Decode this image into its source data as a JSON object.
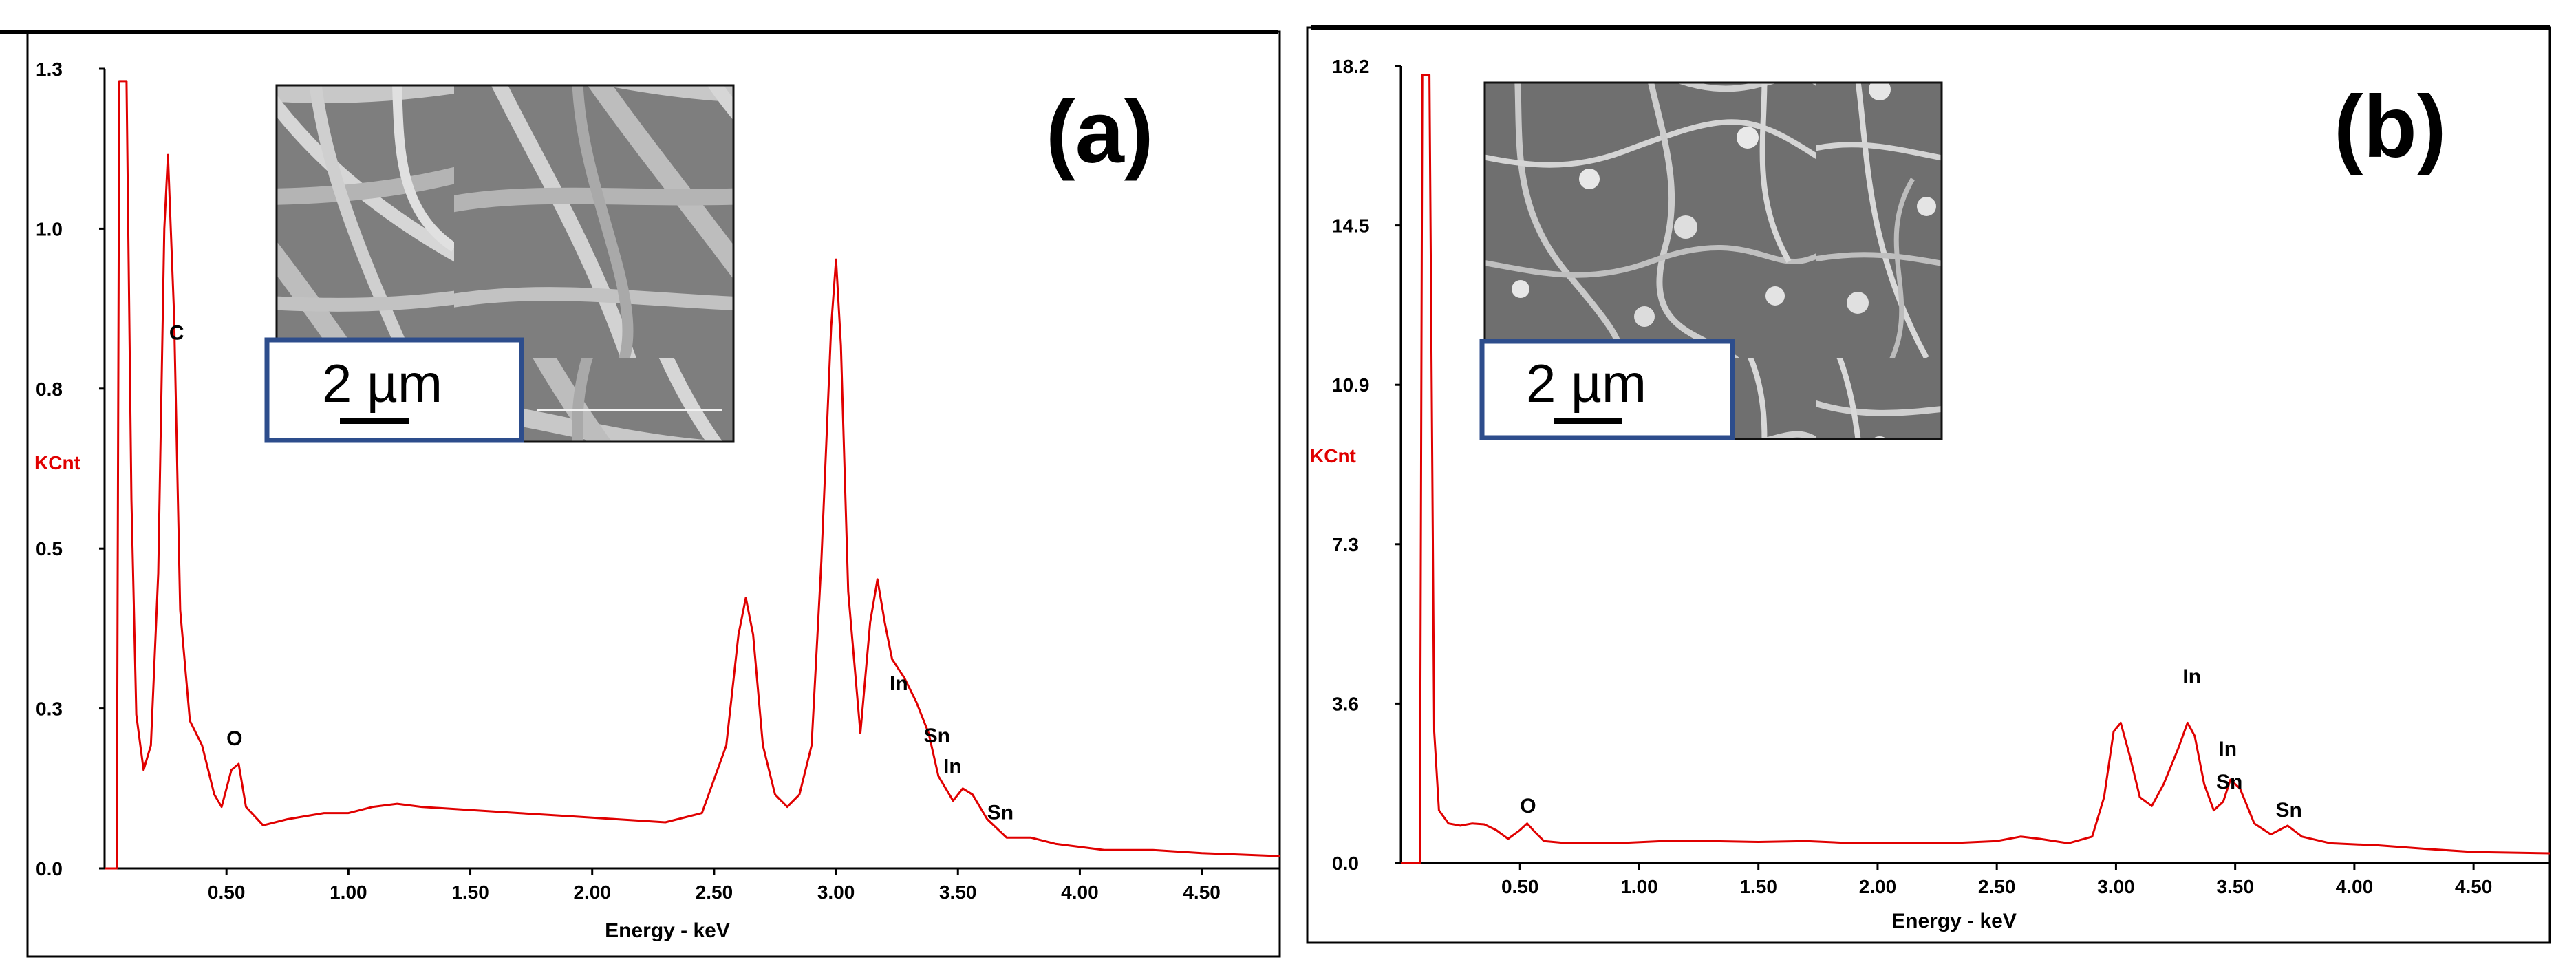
{
  "chart_data": [
    {
      "type": "line",
      "panel_label": "(a)",
      "ylabel": "KCnt",
      "xlabel": "Energy - keV",
      "y_tick_labels": [
        "0.0",
        "0.3",
        "0.5",
        "0.8",
        "1.0",
        "1.3"
      ],
      "x_tick_labels": [
        "0.50",
        "1.00",
        "1.50",
        "2.00",
        "2.50",
        "3.00",
        "3.50",
        "4.00",
        "4.50"
      ],
      "x_ticks": [
        0.5,
        1.0,
        1.5,
        2.0,
        2.5,
        3.0,
        3.5,
        4.0,
        4.5
      ],
      "xlim": [
        0.0,
        4.82
      ],
      "ylim": [
        0.0,
        1.3
      ],
      "series": [
        {
          "name": "EDS spectrum (a)",
          "color": "#e00000",
          "points": [
            [
              0.0,
              0.0
            ],
            [
              0.03,
              0.0
            ],
            [
              0.05,
              0.0
            ],
            [
              0.06,
              1.28
            ],
            [
              0.09,
              1.28
            ],
            [
              0.11,
              0.6
            ],
            [
              0.13,
              0.25
            ],
            [
              0.16,
              0.16
            ],
            [
              0.19,
              0.2
            ],
            [
              0.22,
              0.48
            ],
            [
              0.245,
              1.04
            ],
            [
              0.26,
              1.16
            ],
            [
              0.285,
              0.9
            ],
            [
              0.31,
              0.42
            ],
            [
              0.35,
              0.24
            ],
            [
              0.4,
              0.2
            ],
            [
              0.45,
              0.12
            ],
            [
              0.48,
              0.1
            ],
            [
              0.52,
              0.16
            ],
            [
              0.55,
              0.17
            ],
            [
              0.58,
              0.1
            ],
            [
              0.65,
              0.07
            ],
            [
              0.75,
              0.08
            ],
            [
              0.9,
              0.09
            ],
            [
              1.0,
              0.09
            ],
            [
              1.1,
              0.1
            ],
            [
              1.2,
              0.105
            ],
            [
              1.3,
              0.1
            ],
            [
              1.5,
              0.095
            ],
            [
              1.7,
              0.09
            ],
            [
              1.9,
              0.085
            ],
            [
              2.1,
              0.08
            ],
            [
              2.3,
              0.075
            ],
            [
              2.45,
              0.09
            ],
            [
              2.55,
              0.2
            ],
            [
              2.6,
              0.38
            ],
            [
              2.63,
              0.44
            ],
            [
              2.66,
              0.38
            ],
            [
              2.7,
              0.2
            ],
            [
              2.75,
              0.12
            ],
            [
              2.8,
              0.1
            ],
            [
              2.85,
              0.12
            ],
            [
              2.9,
              0.2
            ],
            [
              2.94,
              0.5
            ],
            [
              2.98,
              0.88
            ],
            [
              3.0,
              0.99
            ],
            [
              3.02,
              0.85
            ],
            [
              3.05,
              0.45
            ],
            [
              3.1,
              0.22
            ],
            [
              3.14,
              0.4
            ],
            [
              3.17,
              0.47
            ],
            [
              3.2,
              0.4
            ],
            [
              3.23,
              0.34
            ],
            [
              3.28,
              0.31
            ],
            [
              3.33,
              0.27
            ],
            [
              3.38,
              0.22
            ],
            [
              3.42,
              0.15
            ],
            [
              3.48,
              0.11
            ],
            [
              3.52,
              0.13
            ],
            [
              3.56,
              0.12
            ],
            [
              3.62,
              0.08
            ],
            [
              3.7,
              0.05
            ],
            [
              3.8,
              0.05
            ],
            [
              3.9,
              0.04
            ],
            [
              4.1,
              0.03
            ],
            [
              4.3,
              0.03
            ],
            [
              4.5,
              0.025
            ],
            [
              4.82,
              0.02
            ]
          ]
        }
      ],
      "peak_labels": [
        {
          "text": "C",
          "x": 0.265,
          "y": 0.86
        },
        {
          "text": "O",
          "x": 0.5,
          "y": 0.2
        },
        {
          "text": "In",
          "x": 3.22,
          "y": 0.29
        },
        {
          "text": "Sn",
          "x": 3.36,
          "y": 0.205
        },
        {
          "text": "In",
          "x": 3.44,
          "y": 0.155
        },
        {
          "text": "Sn",
          "x": 3.62,
          "y": 0.08
        }
      ],
      "scale_bar_label": "2 µm",
      "colors": {
        "line": "#e00000",
        "inset_border": "#2d4d8c"
      }
    },
    {
      "type": "line",
      "panel_label": "(b)",
      "ylabel": "KCnt",
      "xlabel": "Energy - keV",
      "y_tick_labels": [
        "0.0",
        "3.6",
        "7.3",
        "10.9",
        "14.5",
        "18.2"
      ],
      "x_tick_labels": [
        "0.50",
        "1.00",
        "1.50",
        "2.00",
        "2.50",
        "3.00",
        "3.50",
        "4.00",
        "4.50"
      ],
      "x_ticks": [
        0.5,
        1.0,
        1.5,
        2.0,
        2.5,
        3.0,
        3.5,
        4.0,
        4.5
      ],
      "xlim": [
        0.0,
        4.82
      ],
      "ylim": [
        0.0,
        18.2
      ],
      "series": [
        {
          "name": "EDS spectrum (b)",
          "color": "#e00000",
          "points": [
            [
              0.0,
              0.0
            ],
            [
              0.05,
              0.0
            ],
            [
              0.08,
              0.0
            ],
            [
              0.09,
              18.0
            ],
            [
              0.12,
              18.0
            ],
            [
              0.14,
              3.0
            ],
            [
              0.16,
              1.2
            ],
            [
              0.2,
              0.9
            ],
            [
              0.25,
              0.85
            ],
            [
              0.3,
              0.9
            ],
            [
              0.35,
              0.88
            ],
            [
              0.4,
              0.75
            ],
            [
              0.45,
              0.55
            ],
            [
              0.5,
              0.75
            ],
            [
              0.53,
              0.9
            ],
            [
              0.56,
              0.72
            ],
            [
              0.6,
              0.5
            ],
            [
              0.7,
              0.45
            ],
            [
              0.9,
              0.45
            ],
            [
              1.1,
              0.5
            ],
            [
              1.3,
              0.5
            ],
            [
              1.5,
              0.48
            ],
            [
              1.7,
              0.5
            ],
            [
              1.9,
              0.45
            ],
            [
              2.1,
              0.45
            ],
            [
              2.3,
              0.45
            ],
            [
              2.5,
              0.5
            ],
            [
              2.6,
              0.6
            ],
            [
              2.68,
              0.55
            ],
            [
              2.8,
              0.45
            ],
            [
              2.9,
              0.6
            ],
            [
              2.95,
              1.5
            ],
            [
              2.99,
              3.0
            ],
            [
              3.02,
              3.2
            ],
            [
              3.06,
              2.4
            ],
            [
              3.1,
              1.5
            ],
            [
              3.15,
              1.3
            ],
            [
              3.2,
              1.8
            ],
            [
              3.26,
              2.6
            ],
            [
              3.3,
              3.2
            ],
            [
              3.33,
              2.9
            ],
            [
              3.37,
              1.8
            ],
            [
              3.41,
              1.2
            ],
            [
              3.45,
              1.4
            ],
            [
              3.48,
              1.9
            ],
            [
              3.52,
              1.7
            ],
            [
              3.58,
              0.9
            ],
            [
              3.65,
              0.65
            ],
            [
              3.72,
              0.85
            ],
            [
              3.78,
              0.6
            ],
            [
              3.9,
              0.45
            ],
            [
              4.1,
              0.4
            ],
            [
              4.3,
              0.32
            ],
            [
              4.5,
              0.25
            ],
            [
              4.82,
              0.22
            ]
          ]
        }
      ],
      "peak_labels": [
        {
          "text": "O",
          "x": 0.5,
          "y": 1.15
        },
        {
          "text": "In",
          "x": 3.28,
          "y": 4.1
        },
        {
          "text": "In",
          "x": 3.43,
          "y": 2.45
        },
        {
          "text": "Sn",
          "x": 3.42,
          "y": 1.7
        },
        {
          "text": "Sn",
          "x": 3.67,
          "y": 1.05
        }
      ],
      "scale_bar_label": "2 µm",
      "colors": {
        "line": "#e00000",
        "inset_border": "#2d4d8c"
      }
    }
  ]
}
